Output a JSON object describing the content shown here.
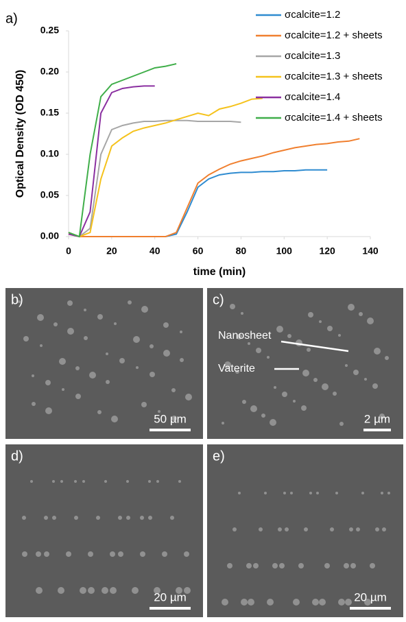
{
  "chart_data": {
    "type": "line",
    "panel_label": "a)",
    "xlabel": "time (min)",
    "ylabel": "Optical Density (OD 450)",
    "x": [
      0,
      5,
      10,
      15,
      20,
      25,
      30,
      35,
      40,
      45,
      50,
      55,
      60,
      65,
      70,
      75,
      80,
      85,
      90,
      95,
      100,
      105,
      110,
      115,
      120,
      125,
      130,
      135
    ],
    "xlim": [
      0,
      140
    ],
    "xticks": [
      0,
      20,
      40,
      60,
      80,
      100,
      120,
      140
    ],
    "ylim": [
      0,
      0.25
    ],
    "yticks": [
      {
        "value": 0,
        "label": "0.00"
      },
      {
        "value": 0.05,
        "label": "0.05"
      },
      {
        "value": 0.1,
        "label": "0.10"
      },
      {
        "value": 0.15,
        "label": "0.15"
      },
      {
        "value": 0.2,
        "label": "0.20"
      },
      {
        "value": 0.25,
        "label": "0.25"
      }
    ],
    "series": [
      {
        "name": "σcalcite=1.2",
        "color": "#2e8bd0",
        "values": [
          0.005,
          0,
          0,
          0,
          0,
          0,
          0,
          0,
          0,
          0,
          0.003,
          0.03,
          0.06,
          0.07,
          0.075,
          0.077,
          0.078,
          0.078,
          0.079,
          0.079,
          0.08,
          0.08,
          0.081,
          0.081,
          0.081,
          null,
          null,
          null
        ]
      },
      {
        "name": "σcalcite=1.2 + sheets",
        "color": "#f07f2e",
        "values": [
          0.003,
          0,
          0,
          0,
          0,
          0,
          0,
          0,
          0,
          0,
          0.005,
          0.035,
          0.065,
          0.075,
          0.082,
          0.088,
          0.092,
          0.095,
          0.098,
          0.102,
          0.105,
          0.108,
          0.11,
          0.112,
          0.113,
          0.115,
          0.116,
          0.119
        ]
      },
      {
        "name": "σcalcite=1.3",
        "color": "#a6a6a6",
        "values": [
          0.005,
          0,
          0.01,
          0.1,
          0.13,
          0.135,
          0.138,
          0.14,
          0.14,
          0.141,
          0.141,
          0.141,
          0.14,
          0.14,
          0.14,
          0.14,
          0.139,
          null,
          null,
          null,
          null,
          null,
          null,
          null,
          null,
          null,
          null,
          null
        ]
      },
      {
        "name": "σcalcite=1.3 + sheets",
        "color": "#f5c21b",
        "values": [
          0.005,
          0,
          0.005,
          0.07,
          0.11,
          0.12,
          0.128,
          0.132,
          0.135,
          0.138,
          0.142,
          0.146,
          0.15,
          0.147,
          0.155,
          0.158,
          0.162,
          0.167,
          0.168,
          null,
          null,
          null,
          null,
          null,
          null,
          null,
          null,
          null
        ]
      },
      {
        "name": "σcalcite=1.4",
        "color": "#8a2fa0",
        "values": [
          0.003,
          0,
          0.03,
          0.15,
          0.175,
          0.18,
          0.182,
          0.183,
          0.183,
          null,
          null,
          null,
          null,
          null,
          null,
          null,
          null,
          null,
          null,
          null,
          null,
          null,
          null,
          null,
          null,
          null,
          null,
          null
        ]
      },
      {
        "name": "σcalcite=1.4 + sheets",
        "color": "#3fae49",
        "values": [
          0.005,
          0,
          0.1,
          0.17,
          0.185,
          0.19,
          0.195,
          0.2,
          0.205,
          0.207,
          0.21,
          null,
          null,
          null,
          null,
          null,
          null,
          null,
          null,
          null,
          null,
          null,
          null,
          null,
          null,
          null,
          null,
          null
        ]
      }
    ]
  },
  "panels": [
    {
      "label": "b)",
      "scale_bar": "50 µm"
    },
    {
      "label": "c)",
      "scale_bar": "2 µm",
      "annotations": [
        "Nanosheet",
        "Vaterite"
      ]
    },
    {
      "label": "d)",
      "scale_bar": "20 µm"
    },
    {
      "label": "e)",
      "scale_bar": "20 µm"
    }
  ]
}
